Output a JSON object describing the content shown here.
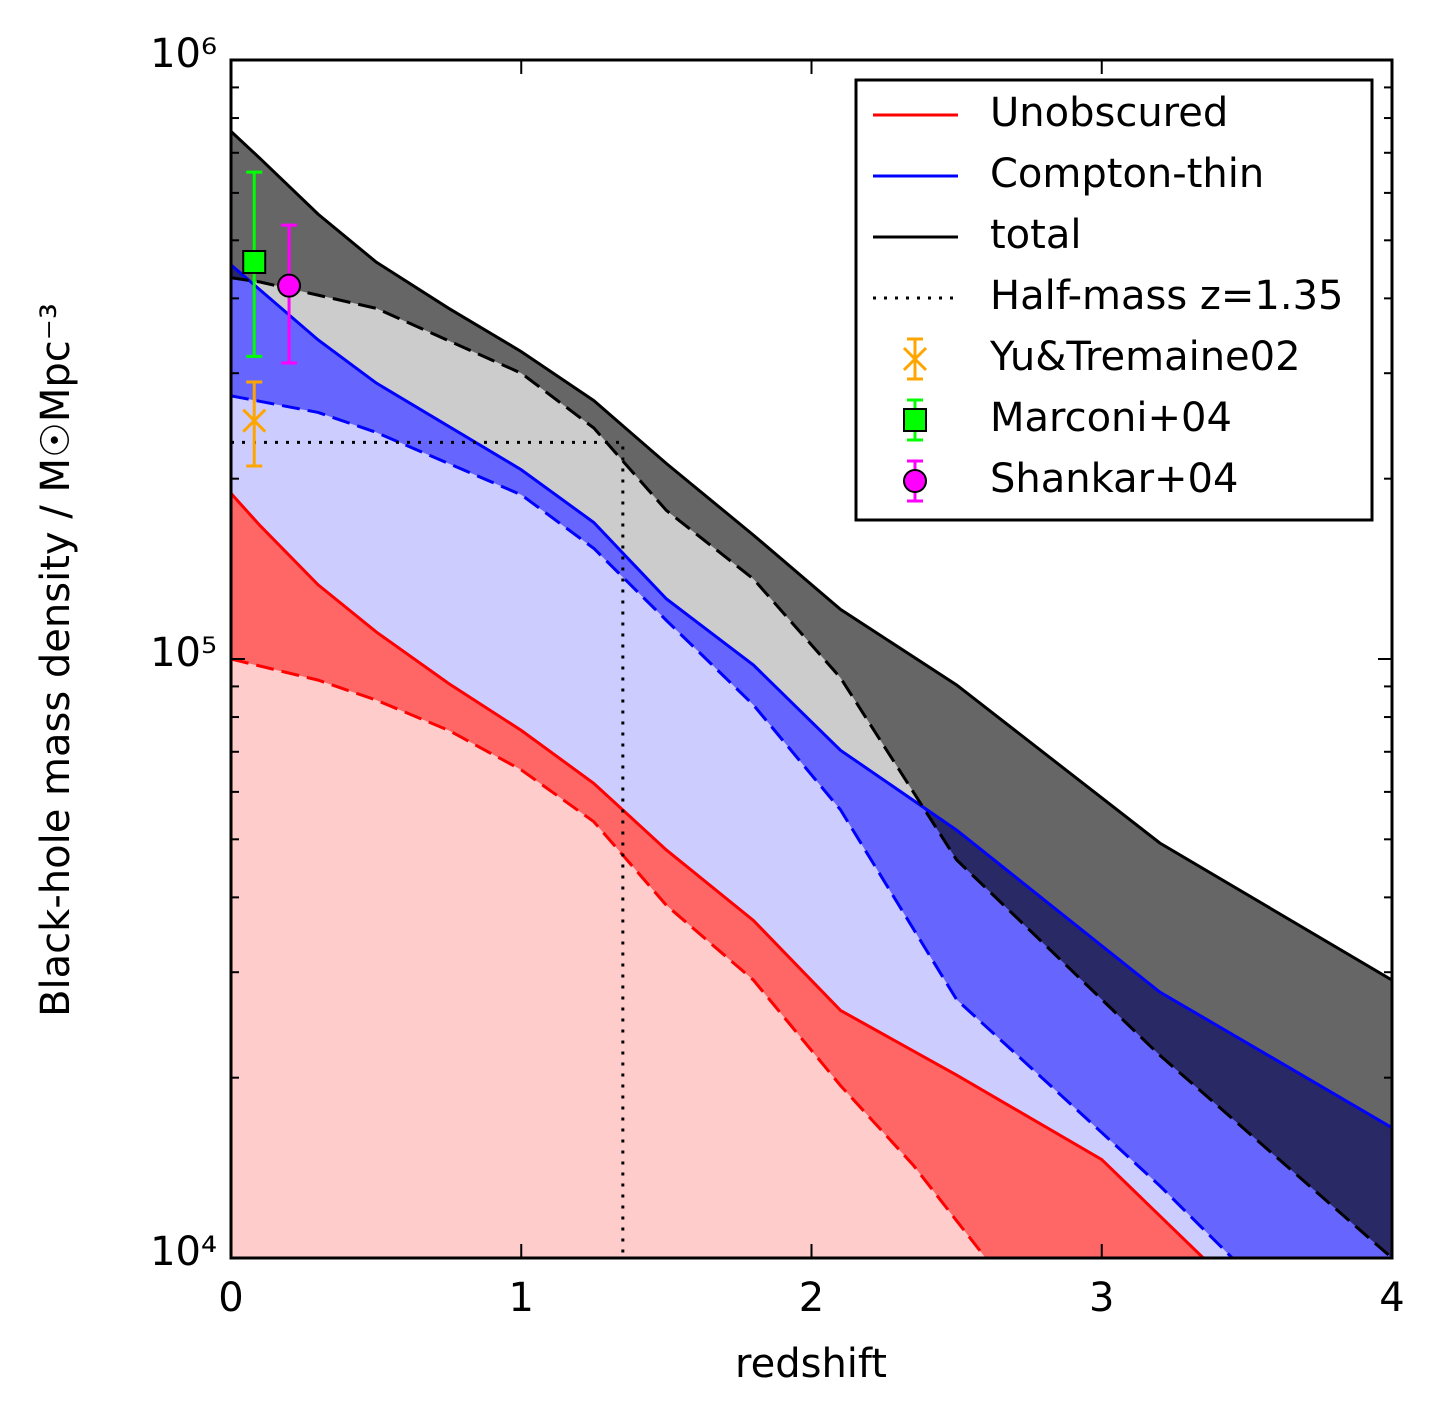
{
  "chart_data": {
    "type": "area_band",
    "xlabel": "redshift",
    "ylabel": "Black-hole mass density / M☉Mpc⁻³",
    "xlim": [
      0,
      4
    ],
    "xticks": [
      0,
      1,
      2,
      3,
      4
    ],
    "ylim": [
      10000,
      1000000
    ],
    "ylog": true,
    "yticks": [
      {
        "value": 10000,
        "label": "10⁴"
      },
      {
        "value": 100000,
        "label": "10⁵"
      },
      {
        "value": 1000000,
        "label": "10⁶"
      }
    ],
    "yminor_ticks": [
      20000,
      30000,
      40000,
      50000,
      60000,
      70000,
      80000,
      90000,
      200000,
      300000,
      400000,
      500000,
      600000,
      700000,
      800000,
      900000
    ],
    "legend": "upper right",
    "series": [
      {
        "name": "Unobscured",
        "color": "#ff0000",
        "band_color": "#ff6666",
        "lower_fill": "#ffcccc",
        "x": [
          0,
          0.1,
          0.3,
          0.5,
          0.75,
          1,
          1.25,
          1.5,
          1.8,
          2.1,
          2.5,
          3,
          3.35
        ],
        "values": [
          189000,
          167000,
          133000,
          111000,
          91000,
          76000,
          62000,
          48000,
          36600,
          25900,
          20200,
          14600,
          10000
        ],
        "lower_x": [
          0,
          0.3,
          0.5,
          0.75,
          1,
          1.25,
          1.5,
          1.8,
          2.1,
          2.35,
          2.6
        ],
        "lower_values": [
          100000,
          92200,
          85400,
          76000,
          65300,
          53500,
          38800,
          29100,
          19400,
          14300,
          10000
        ]
      },
      {
        "name": "Compton-thin",
        "color": "#0000ff",
        "band_color": "#6666ff",
        "lower_fill": "#ccccff",
        "x": [
          0,
          0.3,
          0.5,
          1,
          1.25,
          1.5,
          1.8,
          2.1,
          2.5,
          3.2,
          4
        ],
        "values": [
          455000,
          341000,
          289000,
          207000,
          169000,
          126000,
          97700,
          70400,
          51800,
          27800,
          16500
        ],
        "lower_x": [
          0,
          0.3,
          0.5,
          1,
          1.25,
          1.5,
          1.8,
          2.1,
          2.5,
          3.2,
          3.45
        ],
        "lower_values": [
          275000,
          258000,
          239000,
          188000,
          153000,
          116000,
          83800,
          56000,
          27000,
          13200,
          10000
        ]
      },
      {
        "name": "total",
        "color": "#000000",
        "band_color": "#000000",
        "band_opacity": 0.6,
        "lower_fill": "#cccccc",
        "x": [
          0,
          0.1,
          0.3,
          0.5,
          0.75,
          1,
          1.25,
          1.5,
          1.8,
          2.1,
          2.5,
          3.2,
          4
        ],
        "values": [
          760000,
          685000,
          553000,
          460000,
          385000,
          326000,
          270000,
          212000,
          161000,
          121000,
          90500,
          49300,
          29100
        ],
        "lower_x": [
          0,
          0.1,
          0.5,
          1,
          1.25,
          1.5,
          1.8,
          2.1,
          2.5,
          3.2,
          4
        ],
        "lower_values": [
          433000,
          426000,
          385000,
          300000,
          243000,
          177000,
          136000,
          93000,
          46200,
          21800,
          10000
        ]
      }
    ],
    "half_mass": {
      "name": "Half-mass z=1.35",
      "color": "#000000",
      "x": 1.35,
      "y": 230000
    },
    "points": [
      {
        "name": "Yu&Tremaine02",
        "color": "#ffa500",
        "marker": "x",
        "x": 0.08,
        "y": 250000,
        "err_minus": 40000,
        "err_plus": 40000
      },
      {
        "name": "Marconi+04",
        "color": "#00ff00",
        "marker": "s",
        "x": 0.08,
        "y": 460000,
        "err_minus": 140000,
        "err_plus": 190000
      },
      {
        "name": "Shankar+04",
        "color": "#ff00ff",
        "marker": "o",
        "x": 0.2,
        "y": 420000,
        "err_minus": 108000,
        "err_plus": 110000
      }
    ]
  }
}
